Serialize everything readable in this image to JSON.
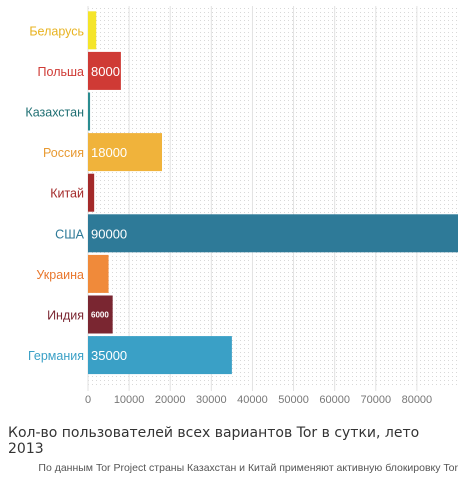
{
  "chart_data": {
    "type": "bar",
    "orientation": "horizontal",
    "categories": [
      "Беларусь",
      "Польша",
      "Казахстан",
      "Россия",
      "Китай",
      "США",
      "Украина",
      "Индия",
      "Германия"
    ],
    "values": [
      2000,
      8000,
      500,
      18000,
      1500,
      90000,
      5000,
      6000,
      35000
    ],
    "data_labels": [
      "",
      "8000",
      "",
      "18000",
      "",
      "90000",
      "",
      "6000",
      "35000"
    ],
    "colors": [
      "#f5e52a",
      "#cf3a35",
      "#2a8c90",
      "#f0b33b",
      "#a42a2a",
      "#2e7a98",
      "#f08a3a",
      "#7a2631",
      "#3aa0c6"
    ],
    "label_colors": [
      "#e8b321",
      "#cf3a35",
      "#1f6f73",
      "#e89a32",
      "#a42a2a",
      "#2e7a98",
      "#e8772d",
      "#7a2631",
      "#3aa0c6"
    ],
    "x_ticks": [
      0,
      10000,
      20000,
      30000,
      40000,
      50000,
      60000,
      70000,
      80000
    ],
    "xlim": [
      0,
      90000
    ],
    "grid": true,
    "title": "",
    "xlabel": "",
    "ylabel": ""
  },
  "caption": "Кол-во пользователей всех вариантов Tor в сутки, лето 2013",
  "note": "По данным Tor Project страны Казахстан и Китай применяют активную блокировку Tor"
}
